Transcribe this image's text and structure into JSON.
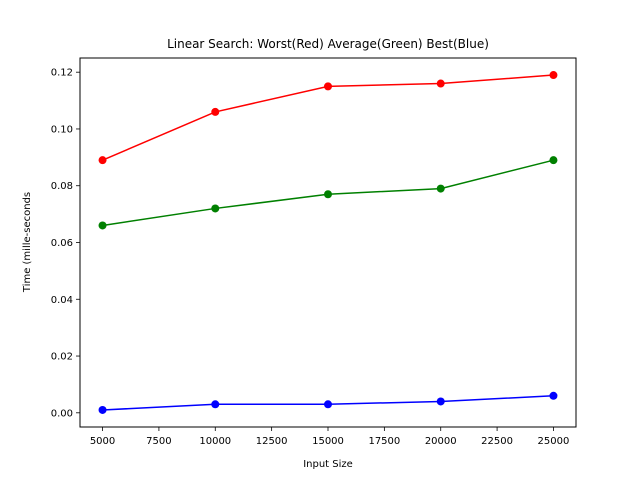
{
  "chart_data": {
    "type": "line",
    "title": "Linear Search: Worst(Red) Average(Green) Best(Blue)",
    "xlabel": "Input Size",
    "ylabel": "Time (mille-seconds",
    "xlim": [
      4000,
      26000
    ],
    "ylim": [
      -0.005,
      0.125
    ],
    "x_ticks": [
      5000,
      7500,
      10000,
      12500,
      15000,
      17500,
      20000,
      22500,
      25000
    ],
    "y_ticks": [
      0.0,
      0.02,
      0.04,
      0.06,
      0.08,
      0.1,
      0.12
    ],
    "x_tick_labels": [
      "5000",
      "7500",
      "10000",
      "12500",
      "15000",
      "17500",
      "20000",
      "22500",
      "25000"
    ],
    "y_tick_labels": [
      "0.00",
      "0.02",
      "0.04",
      "0.06",
      "0.08",
      "0.10",
      "0.12"
    ],
    "grid": false,
    "x": [
      5000,
      10000,
      15000,
      20000,
      25000
    ],
    "series": [
      {
        "color": "#ff0000",
        "values": [
          0.089,
          0.106,
          0.115,
          0.116,
          0.119
        ]
      },
      {
        "color": "#008000",
        "values": [
          0.066,
          0.072,
          0.077,
          0.079,
          0.089
        ]
      },
      {
        "color": "#0000ff",
        "values": [
          0.001,
          0.003,
          0.003,
          0.004,
          0.006
        ]
      }
    ]
  }
}
